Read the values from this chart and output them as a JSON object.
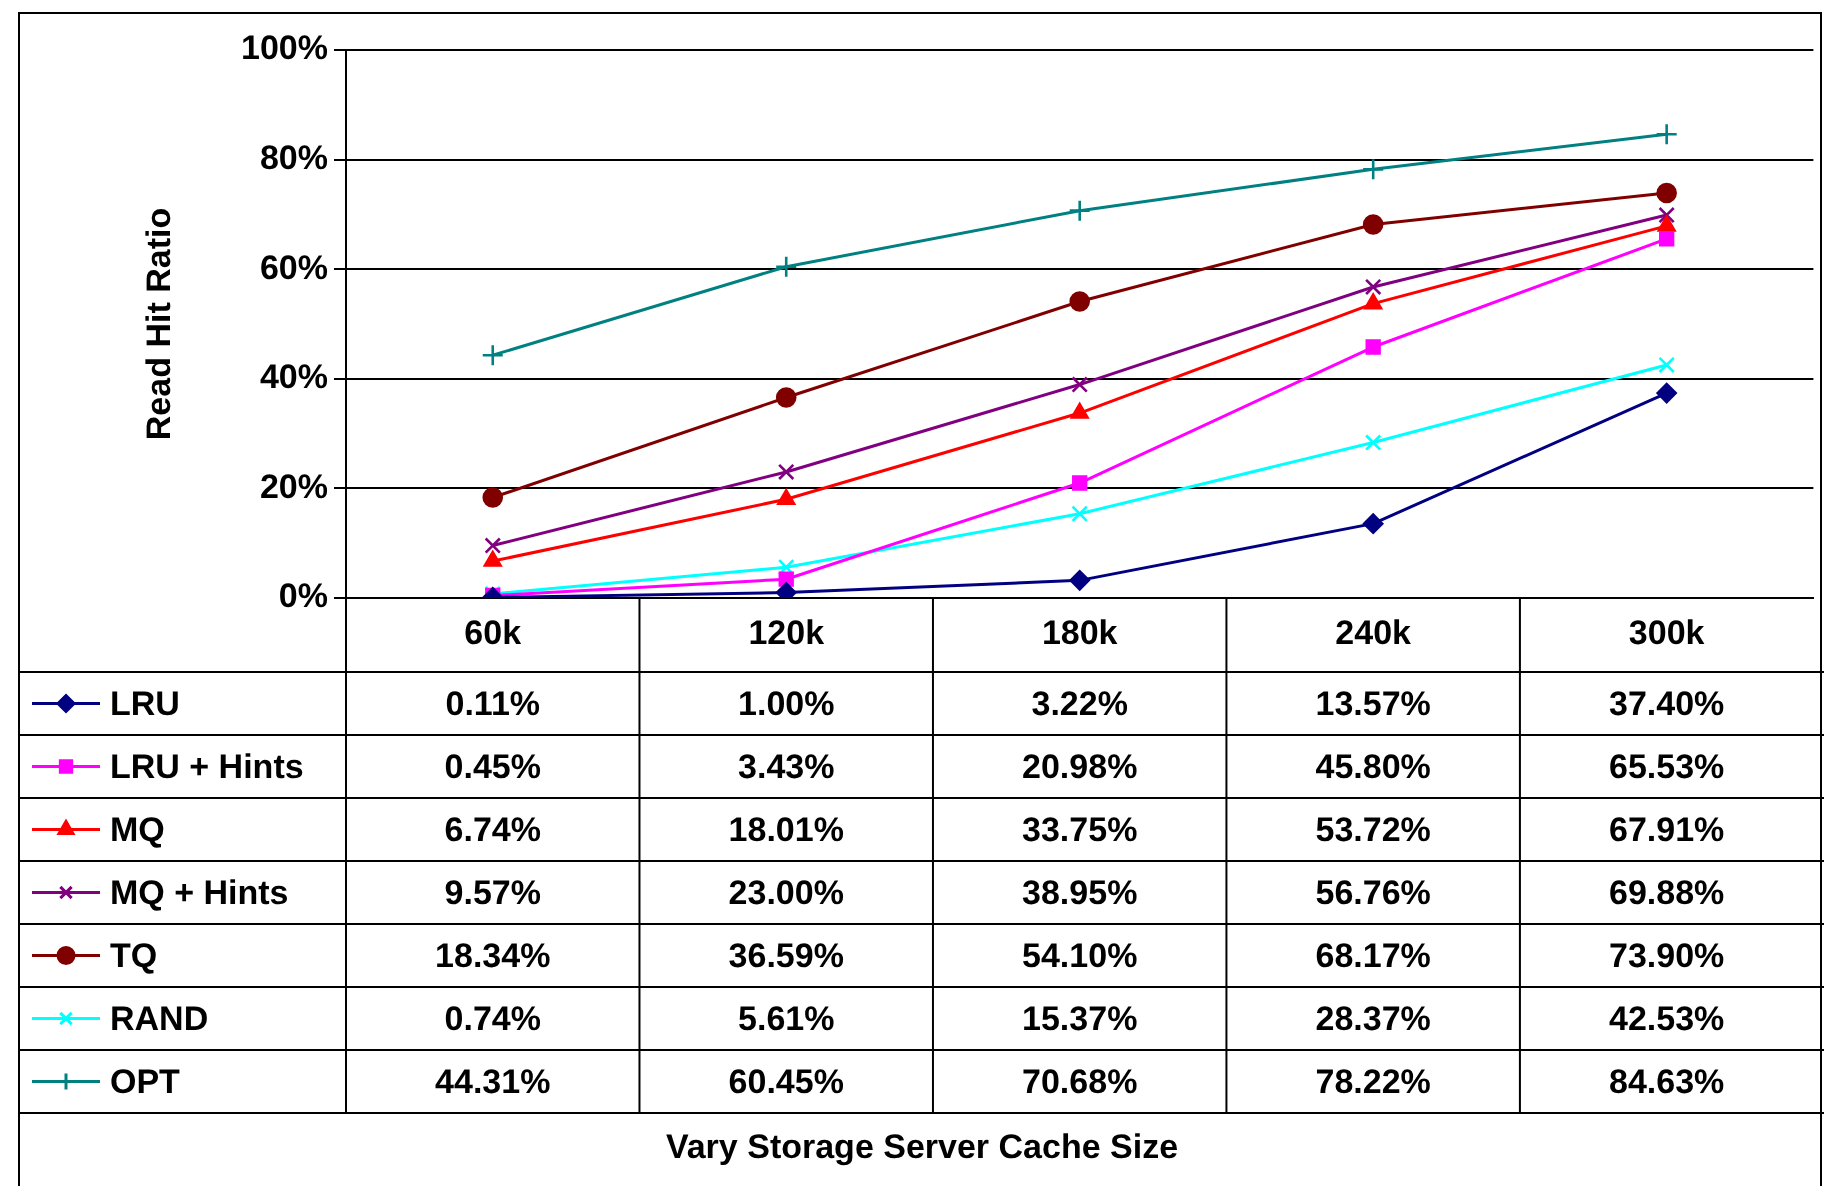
{
  "chart_data": {
    "type": "line",
    "annotations": [
      "Vary Storage Server Cache Size"
    ],
    "ylabel": "Read Hit Ratio",
    "categories": [
      "60k",
      "120k",
      "180k",
      "240k",
      "300k"
    ],
    "ylim": [
      0,
      100
    ],
    "yticks": [
      {
        "value": 0,
        "label": "0%"
      },
      {
        "value": 20,
        "label": "20%"
      },
      {
        "value": 40,
        "label": "40%"
      },
      {
        "value": 60,
        "label": "60%"
      },
      {
        "value": 80,
        "label": "80%"
      },
      {
        "value": 100,
        "label": "100%"
      }
    ],
    "grid": "y",
    "legend": "bottom",
    "line_style": "solid",
    "series": [
      {
        "name": "LRU",
        "color": "#000080",
        "marker": "diamond",
        "values": [
          0.11,
          1.0,
          3.22,
          13.57,
          37.4
        ],
        "value_labels": [
          "0.11%",
          "1.00%",
          "3.22%",
          "13.57%",
          "37.40%"
        ]
      },
      {
        "name": "LRU + Hints",
        "color": "#ff00ff",
        "marker": "square",
        "values": [
          0.45,
          3.43,
          20.98,
          45.8,
          65.53
        ],
        "value_labels": [
          "0.45%",
          "3.43%",
          "20.98%",
          "45.80%",
          "65.53%"
        ]
      },
      {
        "name": "MQ",
        "color": "#ff0000",
        "marker": "triangle",
        "values": [
          6.74,
          18.01,
          33.75,
          53.72,
          67.91
        ],
        "value_labels": [
          "6.74%",
          "18.01%",
          "33.75%",
          "53.72%",
          "67.91%"
        ]
      },
      {
        "name": "MQ + Hints",
        "color": "#800080",
        "marker": "cross",
        "values": [
          9.57,
          23.0,
          38.95,
          56.76,
          69.88
        ],
        "value_labels": [
          "9.57%",
          "23.00%",
          "38.95%",
          "56.76%",
          "69.88%"
        ]
      },
      {
        "name": "TQ",
        "color": "#800000",
        "marker": "circle",
        "values": [
          18.34,
          36.59,
          54.1,
          68.17,
          73.9
        ],
        "value_labels": [
          "18.34%",
          "36.59%",
          "54.10%",
          "68.17%",
          "73.90%"
        ]
      },
      {
        "name": "RAND",
        "color": "#00ffff",
        "marker": "cross",
        "values": [
          0.74,
          5.61,
          15.37,
          28.37,
          42.53
        ],
        "value_labels": [
          "0.74%",
          "5.61%",
          "15.37%",
          "28.37%",
          "42.53%"
        ]
      },
      {
        "name": "OPT",
        "color": "#008080",
        "marker": "plus",
        "values": [
          44.31,
          60.45,
          70.68,
          78.22,
          84.63
        ],
        "value_labels": [
          "44.31%",
          "60.45%",
          "70.68%",
          "78.22%",
          "84.63%"
        ]
      }
    ]
  }
}
